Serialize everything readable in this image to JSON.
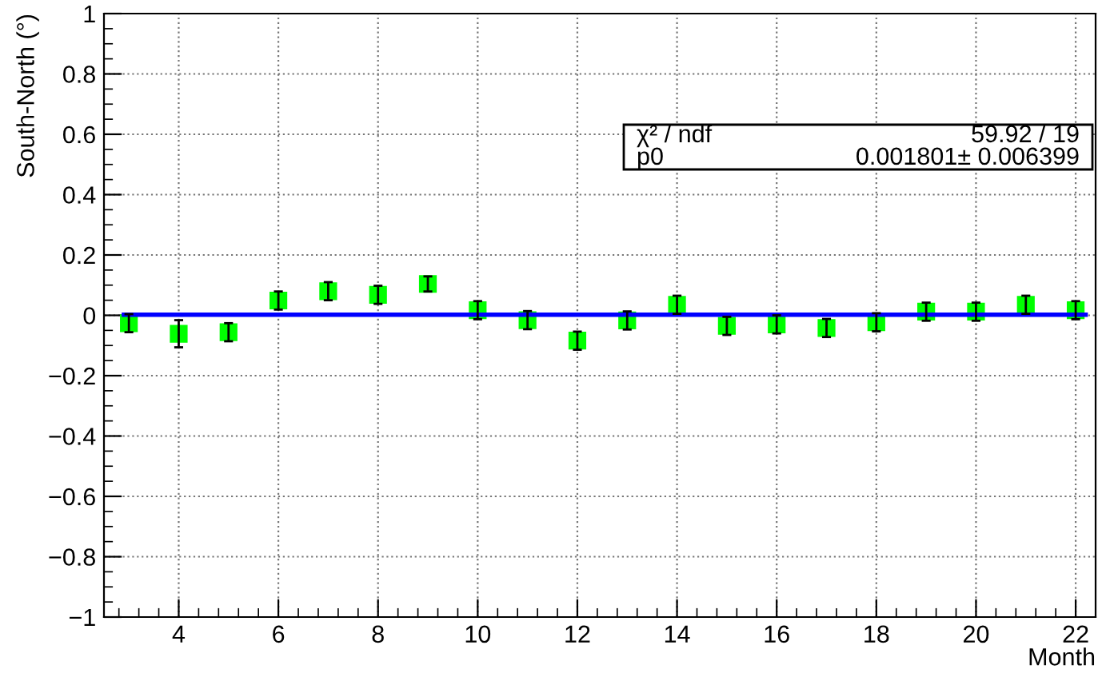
{
  "chart_data": {
    "type": "scatter",
    "xlabel": "Month",
    "ylabel": "South-North (°)",
    "xlim": [
      2.5,
      22.4
    ],
    "xticks": [
      4,
      6,
      8,
      10,
      12,
      14,
      16,
      18,
      20,
      22
    ],
    "ylim": [
      -1,
      1
    ],
    "yticks": [
      -1,
      -0.8,
      -0.6,
      -0.4,
      -0.2,
      0,
      0.2,
      0.4,
      0.6,
      0.8,
      1
    ],
    "grid": true,
    "series": [
      {
        "marker": "square",
        "color": "#00ff00",
        "x": [
          3,
          4,
          5,
          6,
          7,
          8,
          9,
          10,
          11,
          12,
          13,
          14,
          15,
          16,
          17,
          18,
          19,
          20,
          21,
          22
        ],
        "values": [
          -0.026,
          -0.061,
          -0.056,
          0.049,
          0.08,
          0.068,
          0.104,
          0.017,
          -0.016,
          -0.084,
          -0.017,
          0.035,
          -0.035,
          -0.03,
          -0.042,
          -0.023,
          0.012,
          0.012,
          0.035,
          0.017
        ],
        "errors": [
          0.03,
          0.045,
          0.03,
          0.03,
          0.03,
          0.03,
          0.025,
          0.03,
          0.03,
          0.03,
          0.03,
          0.03,
          0.03,
          0.03,
          0.03,
          0.03,
          0.03,
          0.03,
          0.03,
          0.03
        ]
      },
      {
        "type": "line",
        "color": "#0000ff",
        "x": [
          2.9,
          22.2
        ],
        "values": [
          0.002,
          0.002
        ]
      }
    ],
    "annotations": [
      "χ² / ndf",
      "59.92 / 19",
      "p0",
      "0.001801± 0.006399"
    ]
  }
}
